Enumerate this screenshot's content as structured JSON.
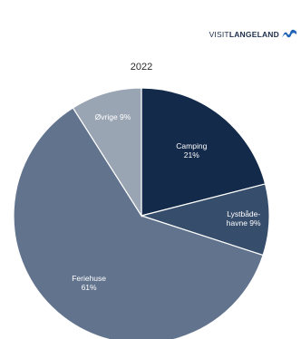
{
  "brand": {
    "text_light": "VISIT",
    "text_bold": "LANGELAND",
    "mark_color": "#1f64b7"
  },
  "chart_data": {
    "type": "pie",
    "title": "2022",
    "start_angle_deg": 0,
    "direction": "clockwise",
    "slices": [
      {
        "label_lines": [
          "Camping",
          "21%"
        ],
        "value": 21,
        "color": "#132a4a"
      },
      {
        "label_lines": [
          "Lystbåde-",
          "havne 9%"
        ],
        "value": 9,
        "color": "#364d6b"
      },
      {
        "label_lines": [
          "Feriehuse",
          "61%"
        ],
        "value": 61,
        "color": "#61738d"
      },
      {
        "label_lines": [
          "Øvrige 9%"
        ],
        "value": 9,
        "color": "#9aa5b4"
      }
    ]
  }
}
